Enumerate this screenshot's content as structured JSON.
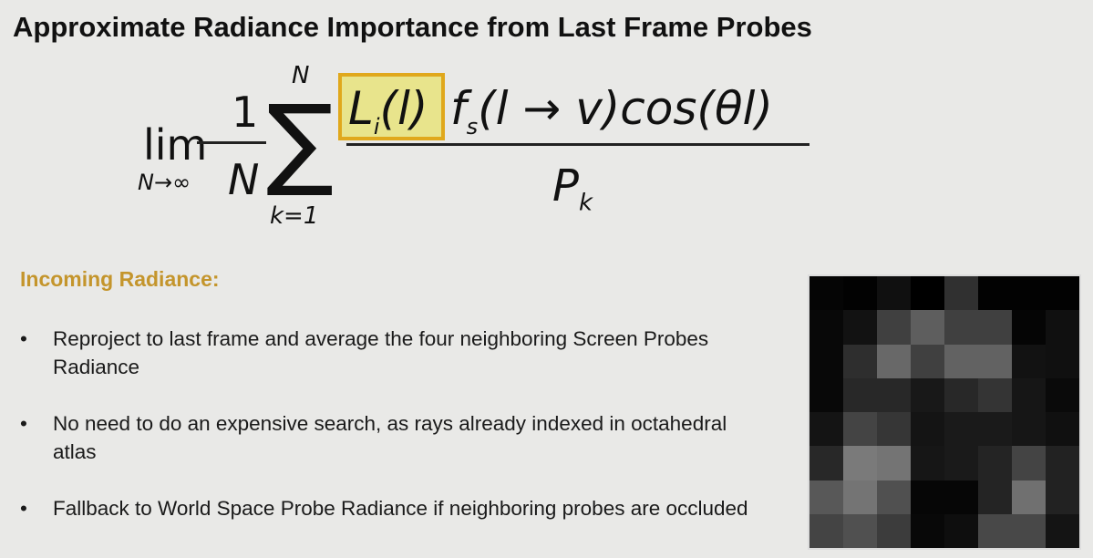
{
  "title": "Approximate Radiance Importance from Last Frame Probes",
  "formula": {
    "lim": "lim",
    "lim_sub": "N→∞",
    "one": "1",
    "N": "N",
    "sigma": "∑",
    "sum_top": "N",
    "sum_bottom": "k=1",
    "highlight": "L",
    "highlight_sub": "i",
    "highlight_arg": "(l)",
    "numerator_rest": "f",
    "f_sub": "s",
    "f_arg": "(l → v)cos(θl)",
    "denominator": "P",
    "den_sub": "k",
    "highlight_color": "#e0a81c"
  },
  "section": {
    "heading": "Incoming Radiance:",
    "heading_color": "#c4952c",
    "bullets": [
      "Reproject to last frame and average the four neighboring Screen Probes Radiance",
      "No need to do an expensive search, as rays already indexed in octahedral atlas",
      "Fallback to World Space Probe Radiance if neighboring probes are occluded"
    ]
  },
  "probe_image": {
    "rows": [
      [
        "#050505",
        "#020202",
        "#101010",
        "#000000",
        "#303030",
        "#020202",
        "#020202",
        "#020202"
      ],
      [
        "#080808",
        "#121212",
        "#404040",
        "#5e5e5e",
        "#404040",
        "#404040",
        "#050505",
        "#101010"
      ],
      [
        "#080808",
        "#2e2e2e",
        "#686868",
        "#404040",
        "#626262",
        "#626262",
        "#121212",
        "#101010"
      ],
      [
        "#080808",
        "#282828",
        "#282828",
        "#181818",
        "#282828",
        "#343434",
        "#161616",
        "#0a0a0a"
      ],
      [
        "#141414",
        "#444444",
        "#363636",
        "#141414",
        "#1a1a1a",
        "#1a1a1a",
        "#161616",
        "#101010"
      ],
      [
        "#282828",
        "#7a7a7a",
        "#747474",
        "#161616",
        "#1a1a1a",
        "#242424",
        "#444444",
        "#222222"
      ],
      [
        "#585858",
        "#747474",
        "#505050",
        "#060606",
        "#060606",
        "#242424",
        "#707070",
        "#222222"
      ],
      [
        "#444444",
        "#505050",
        "#3c3c3c",
        "#080808",
        "#0e0e0e",
        "#484848",
        "#484848",
        "#141414"
      ]
    ]
  }
}
